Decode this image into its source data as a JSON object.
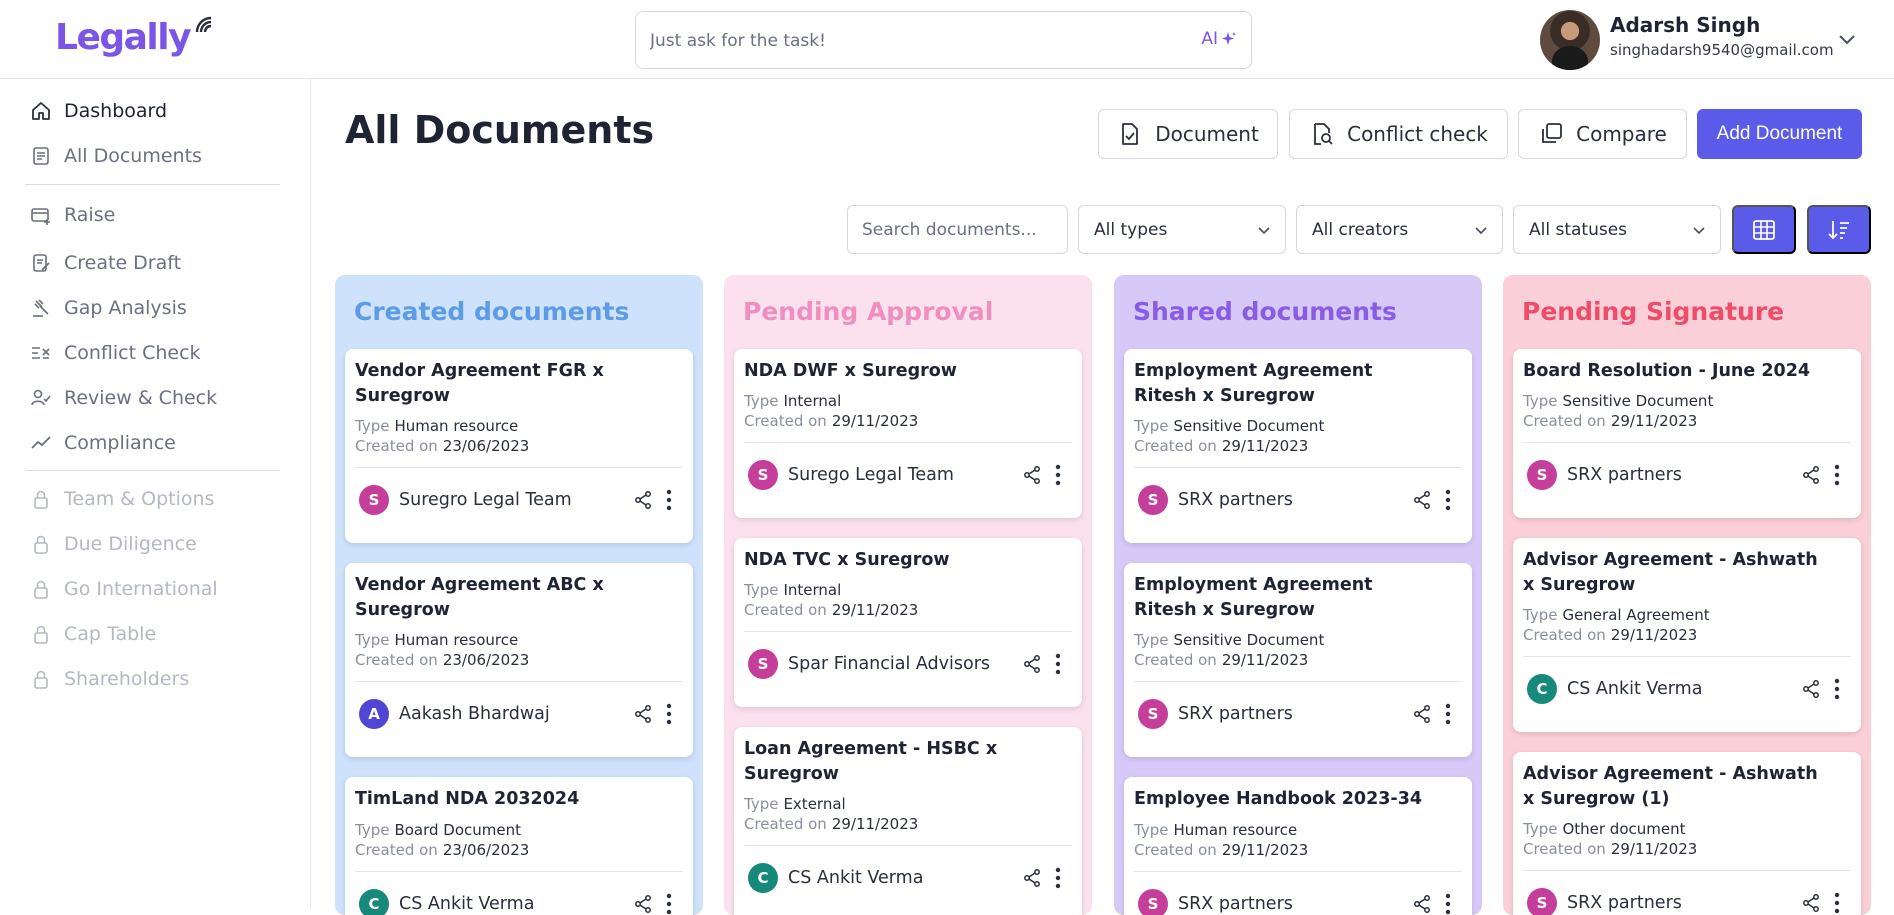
{
  "app": {
    "logo": "Legally"
  },
  "search": {
    "placeholder": "Just ask for the task!",
    "ai_label": "AI"
  },
  "user": {
    "name": "Adarsh Singh",
    "email": "singhadarsh9540@gmail.com"
  },
  "sidebar": {
    "items": [
      {
        "label": "Dashboard",
        "icon": "home-icon"
      },
      {
        "label": "All Documents",
        "icon": "document-list-icon"
      },
      {
        "label": "Raise",
        "icon": "card-plus-icon"
      },
      {
        "label": "Create Draft",
        "icon": "draft-icon"
      },
      {
        "label": "Gap Analysis",
        "icon": "gavel-icon"
      },
      {
        "label": "Conflict Check",
        "icon": "conflict-icon"
      },
      {
        "label": "Review & Check",
        "icon": "review-icon"
      },
      {
        "label": "Compliance",
        "icon": "trend-icon"
      },
      {
        "label": "Team & Options",
        "icon": "lock-icon"
      },
      {
        "label": "Due Diligence",
        "icon": "lock-icon"
      },
      {
        "label": "Go International",
        "icon": "lock-icon"
      },
      {
        "label": "Cap Table",
        "icon": "lock-icon"
      },
      {
        "label": "Shareholders",
        "icon": "lock-icon"
      }
    ]
  },
  "page": {
    "title": "All Documents"
  },
  "toolbar": {
    "document_label": "Document",
    "conflict_label": "Conflict check",
    "compare_label": "Compare",
    "add_label": "Add Document"
  },
  "filters": {
    "search_placeholder": "Search documents...",
    "type": "All types",
    "creator": "All creators",
    "status": "All statuses"
  },
  "labels": {
    "type": "Type",
    "created_on": "Created on"
  },
  "columns": [
    {
      "title": "Created documents",
      "bg": "#cfe2fb",
      "title_color": "#5b9be8",
      "cards": [
        {
          "title": "Vendor Agreement FGR x Suregrow",
          "type": "Human resource",
          "created": "23/06/2023",
          "owner": "Suregro Legal Team",
          "initial": "S",
          "color": "#c53f9a"
        },
        {
          "title": "Vendor Agreement ABC x Suregrow",
          "type": "Human resource",
          "created": "23/06/2023",
          "owner": "Aakash Bhardwaj",
          "initial": "A",
          "color": "#5046d6"
        },
        {
          "title": "TimLand NDA 2032024",
          "type": "Board Document",
          "created": "23/06/2023",
          "owner": "CS Ankit Verma",
          "initial": "C",
          "color": "#16897a"
        }
      ]
    },
    {
      "title": "Pending Approval",
      "bg": "#fbe1ee",
      "title_color": "#f08fbf",
      "cards": [
        {
          "title": "NDA DWF x Suregrow",
          "type": "Internal",
          "created": "29/11/2023",
          "owner": "Surego Legal Team",
          "initial": "S",
          "color": "#c53f9a"
        },
        {
          "title": "NDA TVC x Suregrow",
          "type": "Internal",
          "created": "29/11/2023",
          "owner": "Spar Financial Advisors",
          "initial": "S",
          "color": "#c53f9a"
        },
        {
          "title": "Loan Agreement - HSBC x Suregrow",
          "type": "External",
          "created": "29/11/2023",
          "owner": "CS Ankit Verma",
          "initial": "C",
          "color": "#16897a"
        }
      ]
    },
    {
      "title": "Shared documents",
      "bg": "#d6c9f8",
      "title_color": "#8a5ce6",
      "cards": [
        {
          "title": "Employment Agreement Ritesh x Suregrow",
          "type": "Sensitive Document",
          "created": "29/11/2023",
          "owner": "SRX partners",
          "initial": "S",
          "color": "#c53f9a"
        },
        {
          "title": "Employment Agreement Ritesh x Suregrow",
          "type": "Sensitive Document",
          "created": "29/11/2023",
          "owner": "SRX partners",
          "initial": "S",
          "color": "#c53f9a"
        },
        {
          "title": "Employee Handbook 2023-34",
          "type": "Human resource",
          "created": "29/11/2023",
          "owner": "SRX partners",
          "initial": "S",
          "color": "#c53f9a"
        }
      ]
    },
    {
      "title": "Pending Signature",
      "bg": "#fbcfd8",
      "title_color": "#ee4d6a",
      "cards": [
        {
          "title": "Board Resolution - June 2024",
          "type": "Sensitive Document",
          "created": "29/11/2023",
          "owner": "SRX partners",
          "initial": "S",
          "color": "#c53f9a"
        },
        {
          "title": "Advisor Agreement - Ashwath x Suregrow",
          "type": "General Agreement",
          "created": "29/11/2023",
          "owner": "CS Ankit Verma",
          "initial": "C",
          "color": "#16897a"
        },
        {
          "title": "Advisor Agreement - Ashwath x Suregrow (1)",
          "type": "Other document",
          "created": "29/11/2023",
          "owner": "SRX partners",
          "initial": "S",
          "color": "#c53f9a"
        }
      ]
    }
  ]
}
